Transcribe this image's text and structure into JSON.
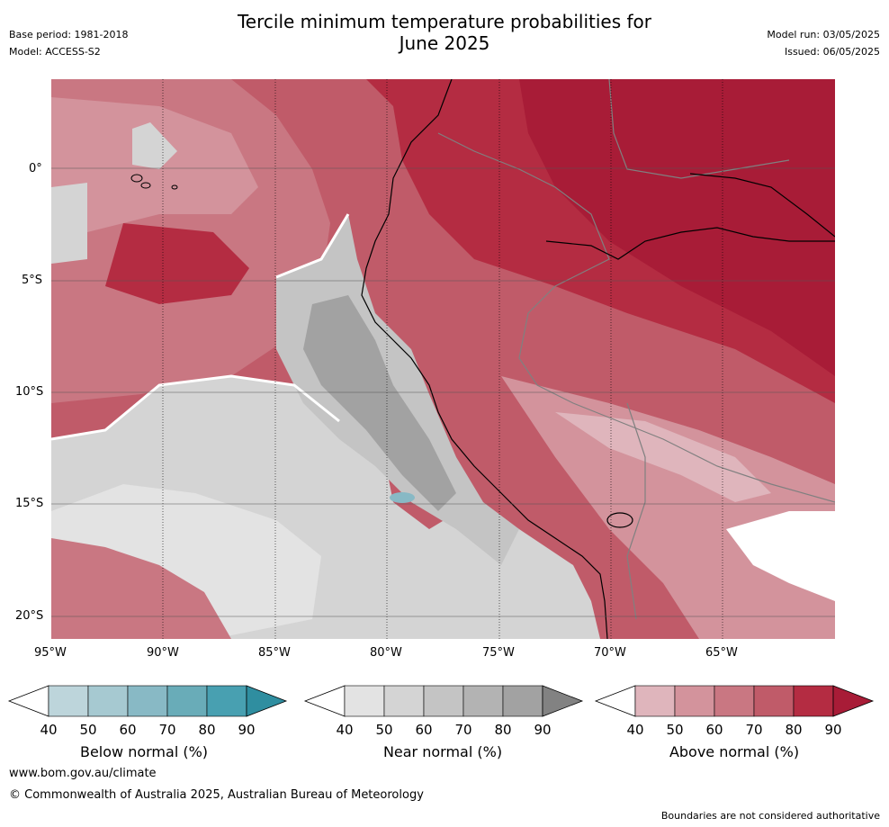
{
  "header": {
    "title_line1": "Tercile minimum temperature probabilities for",
    "title_line2": "June 2025",
    "base_period": "Base period: 1981-2018",
    "model": "Model: ACCESS-S2",
    "model_run": "Model run: 03/05/2025",
    "issued": "Issued: 06/05/2025"
  },
  "map": {
    "lon_labels": [
      "95°W",
      "90°W",
      "85°W",
      "80°W",
      "75°W",
      "70°W",
      "65°W"
    ],
    "lat_labels": [
      "0°",
      "5°S",
      "10°S",
      "15°S",
      "20°S"
    ],
    "lon_range": [
      -95,
      -60
    ],
    "lat_range": [
      4,
      -21
    ]
  },
  "colorbars": [
    {
      "label": "Below normal (%)",
      "ticks": [
        "40",
        "50",
        "60",
        "70",
        "80",
        "90"
      ],
      "colors": [
        "#bdd5db",
        "#a6c9d1",
        "#88b9c5",
        "#69acb8",
        "#48a0b1",
        "#2f8ea0"
      ]
    },
    {
      "label": "Near normal (%)",
      "ticks": [
        "40",
        "50",
        "60",
        "70",
        "80",
        "90"
      ],
      "colors": [
        "#e3e3e3",
        "#d4d4d4",
        "#c4c4c4",
        "#b3b3b3",
        "#a2a2a2",
        "#828282"
      ]
    },
    {
      "label": "Above normal (%)",
      "ticks": [
        "40",
        "50",
        "60",
        "70",
        "80",
        "90"
      ],
      "colors": [
        "#dfb5bc",
        "#d3939c",
        "#c97782",
        "#c05b69",
        "#b42c42",
        "#a81c37"
      ]
    }
  ],
  "footer": {
    "website": "www.bom.gov.au/climate",
    "copyright": "© Commonwealth of Australia 2025, Australian Bureau of Meteorology",
    "disclaimer": "Boundaries are not considered authoritative"
  }
}
